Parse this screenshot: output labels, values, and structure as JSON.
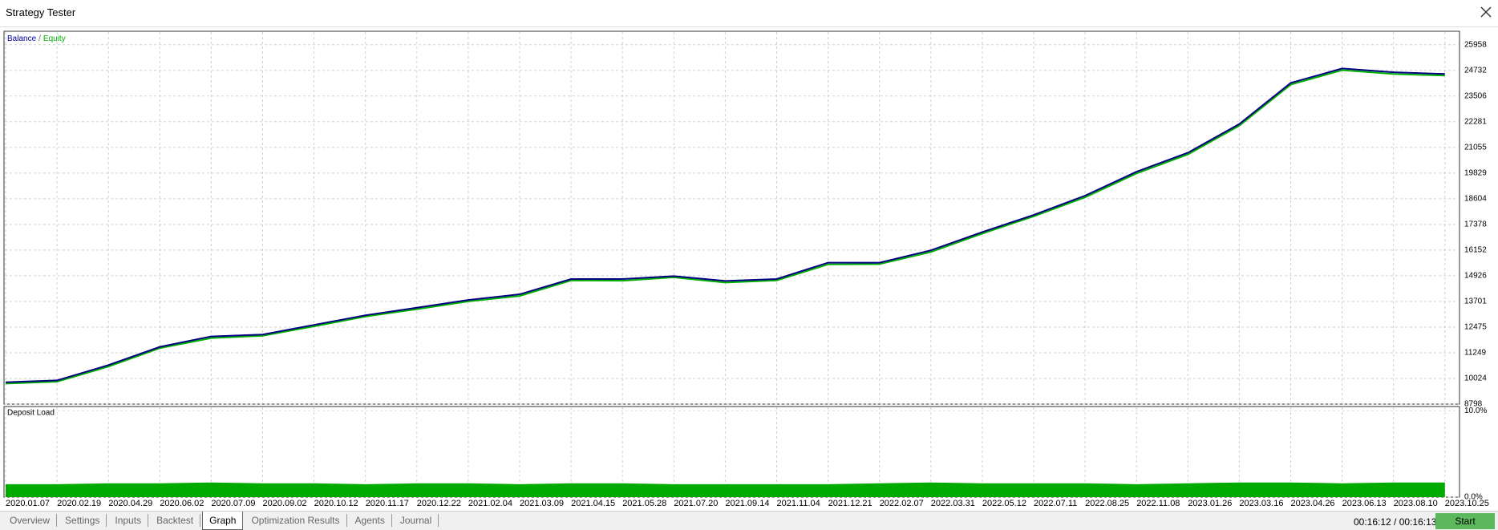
{
  "window": {
    "title": "Strategy Tester"
  },
  "chart_data": [
    {
      "type": "line",
      "legend_separator": "/",
      "categories": [
        "2020.01.07",
        "2020.02.19",
        "2020.04.29",
        "2020.06.02",
        "2020.07.09",
        "2020.09.02",
        "2020.10.12",
        "2020.11.17",
        "2020.12.22",
        "2021.02.04",
        "2021.03.09",
        "2021.04.15",
        "2021.05.28",
        "2021.07.20",
        "2021.09.14",
        "2021.11.04",
        "2021.12.21",
        "2022.02.07",
        "2022.03.31",
        "2022.05.12",
        "2022.07.11",
        "2022.08.25",
        "2022.11.08",
        "2023.01.26",
        "2023.03.16",
        "2023.04.26",
        "2023.06.13",
        "2023.08.10",
        "2023.10.25"
      ],
      "series": [
        {
          "name": "Equity",
          "color": "#00b000",
          "values": [
            9780,
            9870,
            10590,
            11470,
            11950,
            12060,
            12510,
            12980,
            13330,
            13700,
            13960,
            14700,
            14690,
            14850,
            14600,
            14700,
            15470,
            15480,
            16060,
            16940,
            17760,
            18670,
            19810,
            20720,
            22090,
            24050,
            24740,
            24560,
            24480
          ]
        },
        {
          "name": "Balance",
          "color": "#000080",
          "values": [
            9840,
            9930,
            10660,
            11530,
            12030,
            12120,
            12580,
            13040,
            13400,
            13770,
            14040,
            14770,
            14770,
            14910,
            14680,
            14770,
            15550,
            15550,
            16140,
            17010,
            17830,
            18750,
            19890,
            20800,
            22170,
            24130,
            24820,
            24640,
            24560
          ]
        }
      ],
      "ylim": [
        8798,
        26597
      ],
      "yticks": [
        8798,
        10024,
        11249,
        12475,
        13701,
        14926,
        16152,
        17378,
        18604,
        19829,
        21055,
        22281,
        23506,
        24732,
        25958
      ],
      "grid": true
    },
    {
      "type": "area",
      "title": "Deposit Load",
      "series": [
        {
          "name": "Deposit Load",
          "color": "#00aa00",
          "values": [
            1.5,
            1.5,
            1.6,
            1.6,
            1.7,
            1.6,
            1.6,
            1.5,
            1.6,
            1.6,
            1.5,
            1.6,
            1.6,
            1.5,
            1.5,
            1.5,
            1.5,
            1.6,
            1.7,
            1.6,
            1.6,
            1.6,
            1.5,
            1.6,
            1.7,
            1.7,
            1.6,
            1.7,
            1.7
          ]
        }
      ],
      "ylim": [
        0,
        10.5
      ],
      "yticks": [
        {
          "value": 0,
          "label": "0.0%"
        },
        {
          "value": 10,
          "label": "10.0%"
        }
      ],
      "grid": true
    }
  ],
  "tabs": [
    "Overview",
    "Settings",
    "Inputs",
    "Backtest",
    "Graph",
    "Optimization Results",
    "Agents",
    "Journal"
  ],
  "active_tab": 4,
  "status": {
    "time": "00:16:12 / 00:16:13",
    "button": "Start"
  }
}
